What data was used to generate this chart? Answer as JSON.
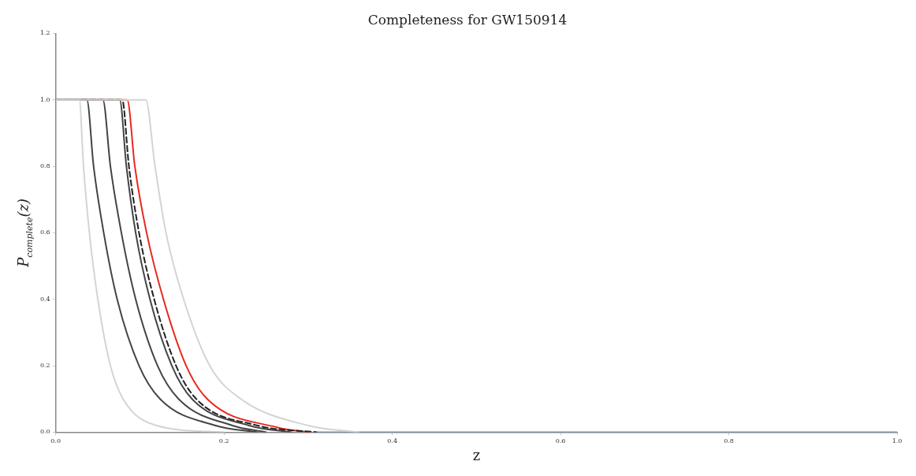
{
  "chart_data": {
    "type": "line",
    "title": "Completeness for GW150914",
    "xlabel": "z",
    "ylabel": "P$_{complete}$(z)",
    "series": [
      {
        "color": "#d4d4d4",
        "x": [
          0,
          0.028,
          0.033,
          0.04,
          0.05,
          0.065,
          0.08,
          0.12,
          0.2
        ],
        "values": [
          1,
          1,
          0.8,
          0.6,
          0.4,
          0.2,
          0.1,
          0.02,
          0
        ]
      },
      {
        "color": "#d4d4d4",
        "x": [
          0,
          0.107,
          0.118,
          0.131,
          0.152,
          0.183,
          0.22,
          0.3,
          0.36
        ],
        "values": [
          1,
          1,
          0.8,
          0.6,
          0.4,
          0.2,
          0.1,
          0.02,
          0
        ]
      },
      {
        "color": "#444444",
        "x": [
          0,
          0.037,
          0.045,
          0.057,
          0.073,
          0.099,
          0.124,
          0.19,
          0.24
        ],
        "values": [
          1,
          1,
          0.8,
          0.6,
          0.4,
          0.2,
          0.1,
          0.02,
          0
        ]
      },
      {
        "color": "#444444",
        "x": [
          0,
          0.056,
          0.065,
          0.078,
          0.095,
          0.121,
          0.146,
          0.21,
          0.25
        ],
        "values": [
          1,
          1,
          0.8,
          0.6,
          0.4,
          0.2,
          0.1,
          0.02,
          0
        ]
      },
      {
        "color": "#444444",
        "x": [
          0,
          0.076,
          0.084,
          0.095,
          0.112,
          0.138,
          0.162,
          0.23,
          0.28
        ],
        "values": [
          1,
          1,
          0.8,
          0.6,
          0.4,
          0.2,
          0.1,
          0.02,
          0
        ]
      },
      {
        "color": "#222222",
        "line_style": "dashed",
        "x": [
          0,
          0.079,
          0.087,
          0.099,
          0.117,
          0.143,
          0.167,
          0.24,
          0.31
        ],
        "values": [
          1,
          1,
          0.8,
          0.6,
          0.4,
          0.2,
          0.1,
          0.02,
          0
        ]
      },
      {
        "color": "#6f93b3",
        "x": [
          0.31,
          1.0
        ],
        "values": [
          0,
          0
        ]
      },
      {
        "color": "#e8281e",
        "x": [
          0,
          0.085,
          0.094,
          0.108,
          0.128,
          0.155,
          0.18,
          0.264,
          0.3
        ],
        "values": [
          1,
          1,
          0.8,
          0.6,
          0.4,
          0.2,
          0.1,
          0.014,
          0
        ]
      }
    ],
    "xlim": [
      0,
      1.0
    ],
    "xticks": [
      {
        "value": 0,
        "label": "0.0"
      },
      0.2,
      0.4,
      0.6,
      0.8,
      {
        "value": 1,
        "label": "1.0"
      }
    ],
    "ylim": [
      0,
      1.2
    ],
    "yticks": [
      {
        "value": 0,
        "label": "0.0"
      },
      0.2,
      0.4,
      0.6,
      0.8,
      {
        "value": 1,
        "label": "1.0"
      },
      1.2
    ],
    "grid": false,
    "legend": false,
    "marker": "none",
    "line_style": "solid"
  }
}
